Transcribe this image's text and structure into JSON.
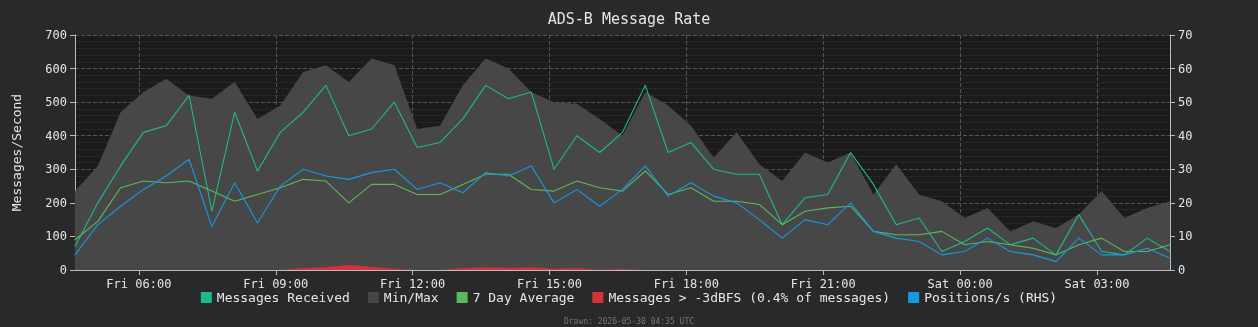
{
  "chart_data": {
    "type": "line",
    "title": "ADS-B Message Rate",
    "ylabel": "Messages/Second",
    "x": [
      "2026-05-29T04:36",
      "2026-05-29T05:06",
      "2026-05-29T05:36",
      "2026-05-29T06:06",
      "2026-05-29T06:36",
      "2026-05-29T07:06",
      "2026-05-29T07:36",
      "2026-05-29T08:06",
      "2026-05-29T08:36",
      "2026-05-29T09:06",
      "2026-05-29T09:36",
      "2026-05-29T10:06",
      "2026-05-29T10:36",
      "2026-05-29T11:06",
      "2026-05-29T11:36",
      "2026-05-29T12:06",
      "2026-05-29T12:36",
      "2026-05-29T13:06",
      "2026-05-29T13:36",
      "2026-05-29T14:06",
      "2026-05-29T14:36",
      "2026-05-29T15:06",
      "2026-05-29T15:36",
      "2026-05-29T16:06",
      "2026-05-29T16:36",
      "2026-05-29T17:06",
      "2026-05-29T17:36",
      "2026-05-29T18:06",
      "2026-05-29T18:36",
      "2026-05-29T19:06",
      "2026-05-29T19:36",
      "2026-05-29T20:06",
      "2026-05-29T20:36",
      "2026-05-29T21:06",
      "2026-05-29T21:36",
      "2026-05-29T22:06",
      "2026-05-29T22:36",
      "2026-05-29T23:06",
      "2026-05-29T23:36",
      "2026-05-30T00:06",
      "2026-05-30T00:36",
      "2026-05-30T01:06",
      "2026-05-30T01:36",
      "2026-05-30T02:06",
      "2026-05-30T02:36",
      "2026-05-30T03:06",
      "2026-05-30T03:36",
      "2026-05-30T04:06",
      "2026-05-30T04:36"
    ],
    "xlim": [
      "2026-05-29T04:36",
      "2026-05-30T04:36"
    ],
    "xticks": [
      {
        "value": "2026-05-29T06:00",
        "label": "Fri 06:00"
      },
      {
        "value": "2026-05-29T09:00",
        "label": "Fri 09:00"
      },
      {
        "value": "2026-05-29T12:00",
        "label": "Fri 12:00"
      },
      {
        "value": "2026-05-29T15:00",
        "label": "Fri 15:00"
      },
      {
        "value": "2026-05-29T18:00",
        "label": "Fri 18:00"
      },
      {
        "value": "2026-05-29T21:00",
        "label": "Fri 21:00"
      },
      {
        "value": "2026-05-30T00:00",
        "label": "Sat 00:00"
      },
      {
        "value": "2026-05-30T03:00",
        "label": "Sat 03:00"
      }
    ],
    "ylim": [
      0,
      700
    ],
    "yticks": [
      0,
      100,
      200,
      300,
      400,
      500,
      600,
      700
    ],
    "y2lim": [
      0,
      70
    ],
    "y2ticks": [
      0,
      10,
      20,
      30,
      40,
      50,
      60,
      70
    ],
    "grid": true,
    "legend": "bottom",
    "marker": "none",
    "line_style": "solid",
    "series": [
      {
        "name": "Messages Received",
        "color": "#1fb98e",
        "values": [
          70,
          200,
          310,
          410,
          430,
          520,
          175,
          470,
          295,
          410,
          470,
          550,
          400,
          420,
          500,
          365,
          380,
          450,
          550,
          510,
          530,
          300,
          400,
          350,
          410,
          550,
          350,
          380,
          300,
          285,
          285,
          135,
          215,
          225,
          350,
          255,
          135,
          155,
          55,
          85,
          125,
          75,
          95,
          45,
          165,
          55,
          45,
          95,
          55
        ]
      },
      {
        "name": "Min/Max",
        "type": "area",
        "color": "#474747",
        "values": [
          235,
          310,
          470,
          530,
          570,
          520,
          510,
          560,
          450,
          490,
          590,
          610,
          560,
          630,
          610,
          420,
          430,
          550,
          630,
          600,
          530,
          500,
          495,
          450,
          400,
          530,
          490,
          430,
          335,
          410,
          315,
          265,
          350,
          320,
          350,
          225,
          315,
          225,
          205,
          155,
          185,
          115,
          145,
          125,
          165,
          235,
          155,
          185,
          205
        ]
      },
      {
        "name": "7 Day Average",
        "color": "#5cb85c",
        "values": [
          90,
          145,
          245,
          265,
          260,
          265,
          235,
          205,
          225,
          245,
          270,
          265,
          200,
          255,
          255,
          225,
          225,
          255,
          285,
          285,
          240,
          235,
          265,
          245,
          235,
          295,
          225,
          245,
          205,
          205,
          195,
          135,
          175,
          185,
          190,
          115,
          105,
          105,
          115,
          75,
          85,
          75,
          65,
          45,
          75,
          95,
          55,
          55,
          75
        ]
      },
      {
        "name": "Messages > -3dBFS (0.4% of messages)",
        "type": "area",
        "color": "#d3323a",
        "values": [
          0,
          0,
          0,
          0,
          0,
          0,
          0,
          0,
          0,
          0,
          5,
          8,
          15,
          10,
          4,
          0,
          0,
          5,
          8,
          6,
          8,
          4,
          5,
          0,
          3,
          0,
          0,
          0,
          0,
          0,
          0,
          0,
          0,
          0,
          0,
          0,
          0,
          0,
          0,
          0,
          0,
          0,
          0,
          0,
          0,
          0,
          0,
          0,
          0
        ]
      },
      {
        "name": "Positions/s (RHS)",
        "axis": "y2",
        "color": "#1799e0",
        "values": [
          4.5,
          13.5,
          19,
          24,
          28,
          33,
          13,
          26,
          14,
          25,
          30,
          28,
          27,
          29,
          30,
          24,
          26,
          23,
          29,
          28,
          31,
          20,
          24,
          19,
          24,
          31,
          22,
          26,
          22,
          20,
          15,
          9.5,
          15,
          13.5,
          20,
          11.5,
          9.5,
          8.5,
          4.5,
          5.5,
          9.5,
          5.5,
          4.5,
          2.5,
          9.5,
          4.5,
          4.5,
          6.5,
          3.5
        ]
      }
    ],
    "annotations": [
      "Drawn: 2026-05-30 04:35 UTC"
    ]
  }
}
